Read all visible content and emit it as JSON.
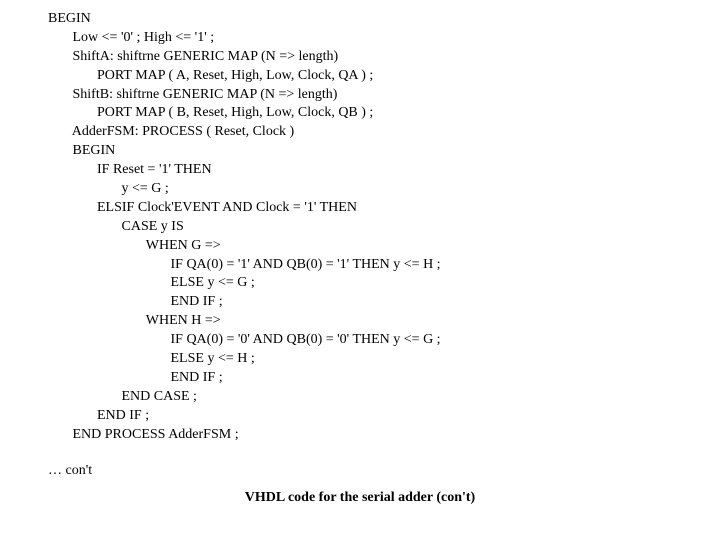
{
  "code": {
    "l01": "BEGIN",
    "l02": "       Low <= '0' ; High <= '1' ;",
    "l03": "       ShiftA: shiftrne GENERIC MAP (N => length)",
    "l04": "              PORT MAP ( A, Reset, High, Low, Clock, QA ) ;",
    "l05": "       ShiftB: shiftrne GENERIC MAP (N => length)",
    "l06": "              PORT MAP ( B, Reset, High, Low, Clock, QB ) ;",
    "l07": "       AdderFSM: PROCESS ( Reset, Clock )",
    "l08": "       BEGIN",
    "l09": "              IF Reset = '1' THEN",
    "l10": "                     y <= G ;",
    "l11": "              ELSIF Clock'EVENT AND Clock = '1' THEN",
    "l12": "                     CASE y IS",
    "l13": "                            WHEN G =>",
    "l14": "                                   IF QA(0) = '1' AND QB(0) = '1' THEN y <= H ;",
    "l15": "                                   ELSE y <= G ;",
    "l16": "                                   END IF ;",
    "l17": "                            WHEN H =>",
    "l18": "                                   IF QA(0) = '0' AND QB(0) = '0' THEN y <= G ;",
    "l19": "                                   ELSE y <= H ;",
    "l20": "                                   END IF ;",
    "l21": "                     END CASE ;",
    "l22": "              END IF ;",
    "l23": "       END PROCESS AdderFSM ;"
  },
  "cont_label": "… con't",
  "caption": "VHDL code for the serial adder (con't)"
}
